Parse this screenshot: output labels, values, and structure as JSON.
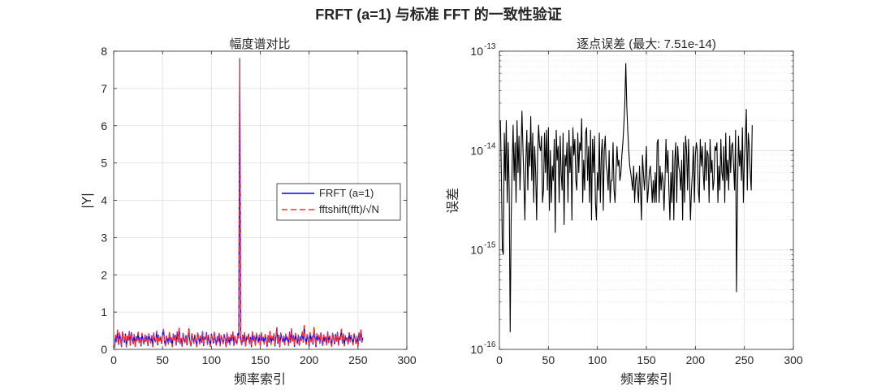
{
  "figure": {
    "suptitle": "FRFT (a=1) 与标准 FFT 的一致性验证"
  },
  "chart_data": [
    {
      "type": "line",
      "title": "幅度谱对比",
      "xlabel": "频率索引",
      "ylabel": "|Y|",
      "xlim": [
        0,
        300
      ],
      "ylim": [
        0,
        8
      ],
      "xticks": [
        0,
        50,
        100,
        150,
        200,
        250,
        300
      ],
      "yticks": [
        0,
        1,
        2,
        3,
        4,
        5,
        6,
        7,
        8
      ],
      "grid": true,
      "legend": {
        "position": "right",
        "entries": [
          "FRFT (a=1)",
          "fftshift(fft)/√N"
        ]
      },
      "series": [
        {
          "name": "FRFT (a=1)",
          "color": "#0000ff",
          "style": "solid",
          "values": [
            0.05,
            0.38,
            0.2,
            0.52,
            0.13,
            0.44,
            0.27,
            0.07,
            0.47,
            0.33,
            0.19,
            0.41,
            0.06,
            0.36,
            0.24,
            0.48,
            0.11,
            0.45,
            0.29,
            0.15,
            0.4,
            0.08,
            0.34,
            0.22,
            0.46,
            0.18,
            0.31,
            0.09,
            0.43,
            0.26,
            0.14,
            0.39,
            0.21,
            0.35,
            0.1,
            0.42,
            0.28,
            0.17,
            0.37,
            0.07,
            0.44,
            0.25,
            0.2,
            0.49,
            0.12,
            0.38,
            0.23,
            0.33,
            0.16,
            0.4,
            0.54,
            0.22,
            0.09,
            0.36,
            0.28,
            0.14,
            0.45,
            0.19,
            0.32,
            0.07,
            0.41,
            0.25,
            0.38,
            0.11,
            0.47,
            0.2,
            0.57,
            0.15,
            0.3,
            0.08,
            0.43,
            0.26,
            0.18,
            0.37,
            0.12,
            0.34,
            0.55,
            0.21,
            0.09,
            0.42,
            0.29,
            0.16,
            0.39,
            0.23,
            0.07,
            0.44,
            0.31,
            0.14,
            0.36,
            0.19,
            0.48,
            0.1,
            0.33,
            0.27,
            0.45,
            0.13,
            0.38,
            0.22,
            0.08,
            0.41,
            0.3,
            0.17,
            0.46,
            0.24,
            0.11,
            0.35,
            0.2,
            0.43,
            0.09,
            0.37,
            0.26,
            0.15,
            0.4,
            0.28,
            0.07,
            0.44,
            0.18,
            0.33,
            0.12,
            0.39,
            0.23,
            0.47,
            0.1,
            0.36,
            0.21,
            0.14,
            0.42,
            0.3,
            7.8,
            0.26,
            0.12,
            0.38,
            0.2,
            0.45,
            0.09,
            0.34,
            0.27,
            0.41,
            0.15,
            0.32,
            0.07,
            0.47,
            0.23,
            0.36,
            0.11,
            0.43,
            0.28,
            0.18,
            0.39,
            0.1,
            0.45,
            0.22,
            0.33,
            0.14,
            0.4,
            0.26,
            0.08,
            0.37,
            0.19,
            0.48,
            0.13,
            0.35,
            0.24,
            0.42,
            0.09,
            0.31,
            0.58,
            0.16,
            0.38,
            0.07,
            0.44,
            0.29,
            0.2,
            0.36,
            0.12,
            0.41,
            0.25,
            0.33,
            0.1,
            0.46,
            0.18,
            0.55,
            0.22,
            0.37,
            0.08,
            0.43,
            0.27,
            0.15,
            0.39,
            0.11,
            0.34,
            0.23,
            0.47,
            0.19,
            0.64,
            0.3,
            0.13,
            0.4,
            0.26,
            0.09,
            0.45,
            0.2,
            0.35,
            0.14,
            0.58,
            0.32,
            0.07,
            0.42,
            0.24,
            0.37,
            0.16,
            0.44,
            0.28,
            0.1,
            0.39,
            0.21,
            0.34,
            0.12,
            0.47,
            0.18,
            0.36,
            0.25,
            0.08,
            0.43,
            0.3,
            0.15,
            0.4,
            0.22,
            0.46,
            0.11,
            0.33,
            0.27,
            0.54,
            0.17,
            0.41,
            0.09,
            0.37,
            0.24,
            0.31,
            0.14,
            0.45,
            0.2,
            0.38,
            0.26,
            0.12,
            0.42,
            0.29,
            0.16,
            0.35,
            0.08,
            0.44,
            0.23,
            0.52,
            0.19,
            0.32
          ],
          "comment_x": "x = 1..256"
        },
        {
          "name": "fftshift(fft)/√N",
          "color": "#ff3030",
          "style": "dashed",
          "values": [
            0.05,
            0.38,
            0.2,
            0.52,
            0.13,
            0.44,
            0.27,
            0.07,
            0.47,
            0.33,
            0.19,
            0.41,
            0.06,
            0.36,
            0.24,
            0.48,
            0.11,
            0.45,
            0.29,
            0.15,
            0.4,
            0.08,
            0.34,
            0.22,
            0.46,
            0.18,
            0.31,
            0.09,
            0.43,
            0.26,
            0.14,
            0.39,
            0.21,
            0.35,
            0.1,
            0.42,
            0.28,
            0.17,
            0.37,
            0.07,
            0.44,
            0.25,
            0.2,
            0.49,
            0.12,
            0.38,
            0.23,
            0.33,
            0.16,
            0.4,
            0.54,
            0.22,
            0.09,
            0.36,
            0.28,
            0.14,
            0.45,
            0.19,
            0.32,
            0.07,
            0.41,
            0.25,
            0.38,
            0.11,
            0.47,
            0.2,
            0.57,
            0.15,
            0.3,
            0.08,
            0.43,
            0.26,
            0.18,
            0.37,
            0.12,
            0.34,
            0.55,
            0.21,
            0.09,
            0.42,
            0.29,
            0.16,
            0.39,
            0.23,
            0.07,
            0.44,
            0.31,
            0.14,
            0.36,
            0.19,
            0.48,
            0.1,
            0.33,
            0.27,
            0.45,
            0.13,
            0.38,
            0.22,
            0.08,
            0.41,
            0.3,
            0.17,
            0.46,
            0.24,
            0.11,
            0.35,
            0.2,
            0.43,
            0.09,
            0.37,
            0.26,
            0.15,
            0.4,
            0.28,
            0.07,
            0.44,
            0.18,
            0.33,
            0.12,
            0.39,
            0.23,
            0.47,
            0.1,
            0.36,
            0.21,
            0.14,
            0.42,
            0.3,
            7.8,
            0.26,
            0.12,
            0.38,
            0.2,
            0.45,
            0.09,
            0.34,
            0.27,
            0.41,
            0.15,
            0.32,
            0.07,
            0.47,
            0.23,
            0.36,
            0.11,
            0.43,
            0.28,
            0.18,
            0.39,
            0.1,
            0.45,
            0.22,
            0.33,
            0.14,
            0.4,
            0.26,
            0.08,
            0.37,
            0.19,
            0.48,
            0.13,
            0.35,
            0.24,
            0.42,
            0.09,
            0.31,
            0.58,
            0.16,
            0.38,
            0.07,
            0.44,
            0.29,
            0.2,
            0.36,
            0.12,
            0.41,
            0.25,
            0.33,
            0.1,
            0.46,
            0.18,
            0.55,
            0.22,
            0.37,
            0.08,
            0.43,
            0.27,
            0.15,
            0.39,
            0.11,
            0.34,
            0.23,
            0.47,
            0.19,
            0.64,
            0.3,
            0.13,
            0.4,
            0.26,
            0.09,
            0.45,
            0.2,
            0.35,
            0.14,
            0.58,
            0.32,
            0.07,
            0.42,
            0.24,
            0.37,
            0.16,
            0.44,
            0.28,
            0.1,
            0.39,
            0.21,
            0.34,
            0.12,
            0.47,
            0.18,
            0.36,
            0.25,
            0.08,
            0.43,
            0.3,
            0.15,
            0.4,
            0.22,
            0.46,
            0.11,
            0.33,
            0.27,
            0.54,
            0.17,
            0.41,
            0.09,
            0.37,
            0.24,
            0.31,
            0.14,
            0.45,
            0.2,
            0.38,
            0.26,
            0.12,
            0.42,
            0.29,
            0.16,
            0.35,
            0.08,
            0.44,
            0.23,
            0.52,
            0.19,
            0.32
          ]
        }
      ]
    },
    {
      "type": "line",
      "title": "逐点误差 (最大: 7.51e-14)",
      "xlabel": "频率索引",
      "ylabel": "误差",
      "xlim": [
        0,
        300
      ],
      "ylim": [
        1e-16,
        1e-13
      ],
      "yscale": "log",
      "xticks": [
        0,
        50,
        100,
        150,
        200,
        250,
        300
      ],
      "yticks": [
        {
          "base": "10",
          "exp": "-16",
          "value": 1e-16
        },
        {
          "base": "10",
          "exp": "-15",
          "value": 1e-15
        },
        {
          "base": "10",
          "exp": "-14",
          "value": 1e-14
        },
        {
          "base": "10",
          "exp": "-13",
          "value": 1e-13
        }
      ],
      "grid": true,
      "series": [
        {
          "color": "#000000",
          "style": "solid",
          "values": [
            2e-14,
            6e-15,
            1e-15,
            9e-16,
            1.5e-14,
            5e-15,
            2e-14,
            3e-15,
            1.2e-14,
            4e-15,
            1.5e-16,
            2e-15,
            7e-15,
            1.8e-14,
            5e-15,
            1.2e-14,
            3e-15,
            2e-14,
            6e-15,
            1.4e-14,
            4e-15,
            9e-15,
            2.5e-14,
            1.1e-14,
            5e-15,
            2e-15,
            8e-15,
            1.6e-14,
            4e-15,
            1.2e-14,
            7e-15,
            2.2e-14,
            5e-15,
            1.5e-14,
            3e-15,
            1.1e-14,
            6e-15,
            2e-15,
            9e-15,
            1.8e-14,
            1.1e-14,
            1e-14,
            1.4e-14,
            3e-15,
            4e-15,
            1.5e-14,
            6e-15,
            1.6e-14,
            4e-15,
            1.7e-14,
            2.5e-15,
            1e-14,
            3e-15,
            7e-15,
            5e-15,
            1.3e-14,
            1.5e-15,
            1.6e-14,
            8e-15,
            1.1e-14,
            3e-15,
            1.4e-14,
            6e-15,
            4e-15,
            1.5e-14,
            1.8e-15,
            9e-15,
            7e-15,
            1.2e-14,
            3e-15,
            1.6e-14,
            6e-15,
            1.1e-14,
            2e-15,
            1.7e-14,
            9e-15,
            1.3e-14,
            5e-15,
            4e-15,
            1.5e-14,
            6e-15,
            1.2e-14,
            1e-14,
            2.1e-14,
            3e-15,
            8e-15,
            4e-15,
            1.5e-14,
            1.7e-14,
            5e-15,
            1.1e-14,
            3e-15,
            1.6e-14,
            2e-15,
            1.3e-14,
            6e-15,
            1.4e-14,
            3e-15,
            2e-15,
            6e-15,
            4e-15,
            1.5e-14,
            3e-15,
            9e-15,
            1.3e-14,
            2.5e-15,
            1e-14,
            1.4e-14,
            7e-15,
            6e-15,
            4e-15,
            1e-14,
            3e-15,
            5e-15,
            5e-15,
            1.2e-14,
            4e-15,
            3e-15,
            6e-15,
            1.1e-14,
            7e-15,
            8e-15,
            5e-15,
            6e-15,
            9e-15,
            1.2e-14,
            1.8e-14,
            3e-14,
            7.51e-14,
            2.8e-14,
            1.6e-14,
            1e-14,
            7e-15,
            6e-15,
            5e-15,
            4e-15,
            7e-15,
            3e-15,
            5e-15,
            6e-15,
            4e-15,
            3e-15,
            7e-15,
            4e-15,
            2e-15,
            9e-15,
            6e-15,
            4e-15,
            6e-15,
            1.1e-14,
            3e-15,
            4e-15,
            6e-15,
            7e-15,
            5e-15,
            3e-15,
            5e-15,
            3e-15,
            6e-15,
            3e-15,
            1.2e-14,
            1.3e-14,
            3e-15,
            7e-15,
            4e-15,
            6e-15,
            5e-15,
            2.5e-15,
            5e-15,
            1.3e-14,
            6e-15,
            1e-14,
            4e-15,
            2e-15,
            6e-15,
            3e-15,
            1e-14,
            2e-15,
            8e-15,
            1.2e-14,
            3e-15,
            1.1e-14,
            7e-15,
            6e-15,
            4e-15,
            8e-15,
            2e-15,
            1.2e-14,
            3e-15,
            1.4e-14,
            1e-14,
            4e-15,
            1.3e-14,
            5e-15,
            2e-15,
            4e-15,
            6e-15,
            1.1e-14,
            3e-15,
            9e-15,
            1.2e-14,
            1e-14,
            4e-15,
            3e-15,
            1.3e-14,
            7e-15,
            1.1e-14,
            6e-15,
            4e-15,
            1.2e-14,
            5e-15,
            1e-14,
            9e-15,
            3e-15,
            1.3e-14,
            6e-15,
            8e-15,
            4e-15,
            5e-15,
            1.1e-14,
            1e-14,
            1.2e-14,
            3e-15,
            7e-15,
            4e-15,
            1.3e-14,
            6e-15,
            5e-15,
            1.1e-14,
            3e-15,
            1.5e-14,
            5e-15,
            8e-15,
            4e-15,
            1.4e-14,
            6e-15,
            1.1e-14,
            1.2e-14,
            7e-15,
            4e-15,
            1.6e-14,
            3.8e-16,
            4e-15,
            1.4e-14,
            7e-15,
            1e-14,
            5e-15,
            1.7e-14,
            3e-15,
            8e-15,
            1.3e-14,
            2.6e-14,
            4e-15,
            1.5e-14,
            1.1e-14,
            6e-15,
            4e-15,
            1.8e-14
          ]
        }
      ]
    }
  ]
}
